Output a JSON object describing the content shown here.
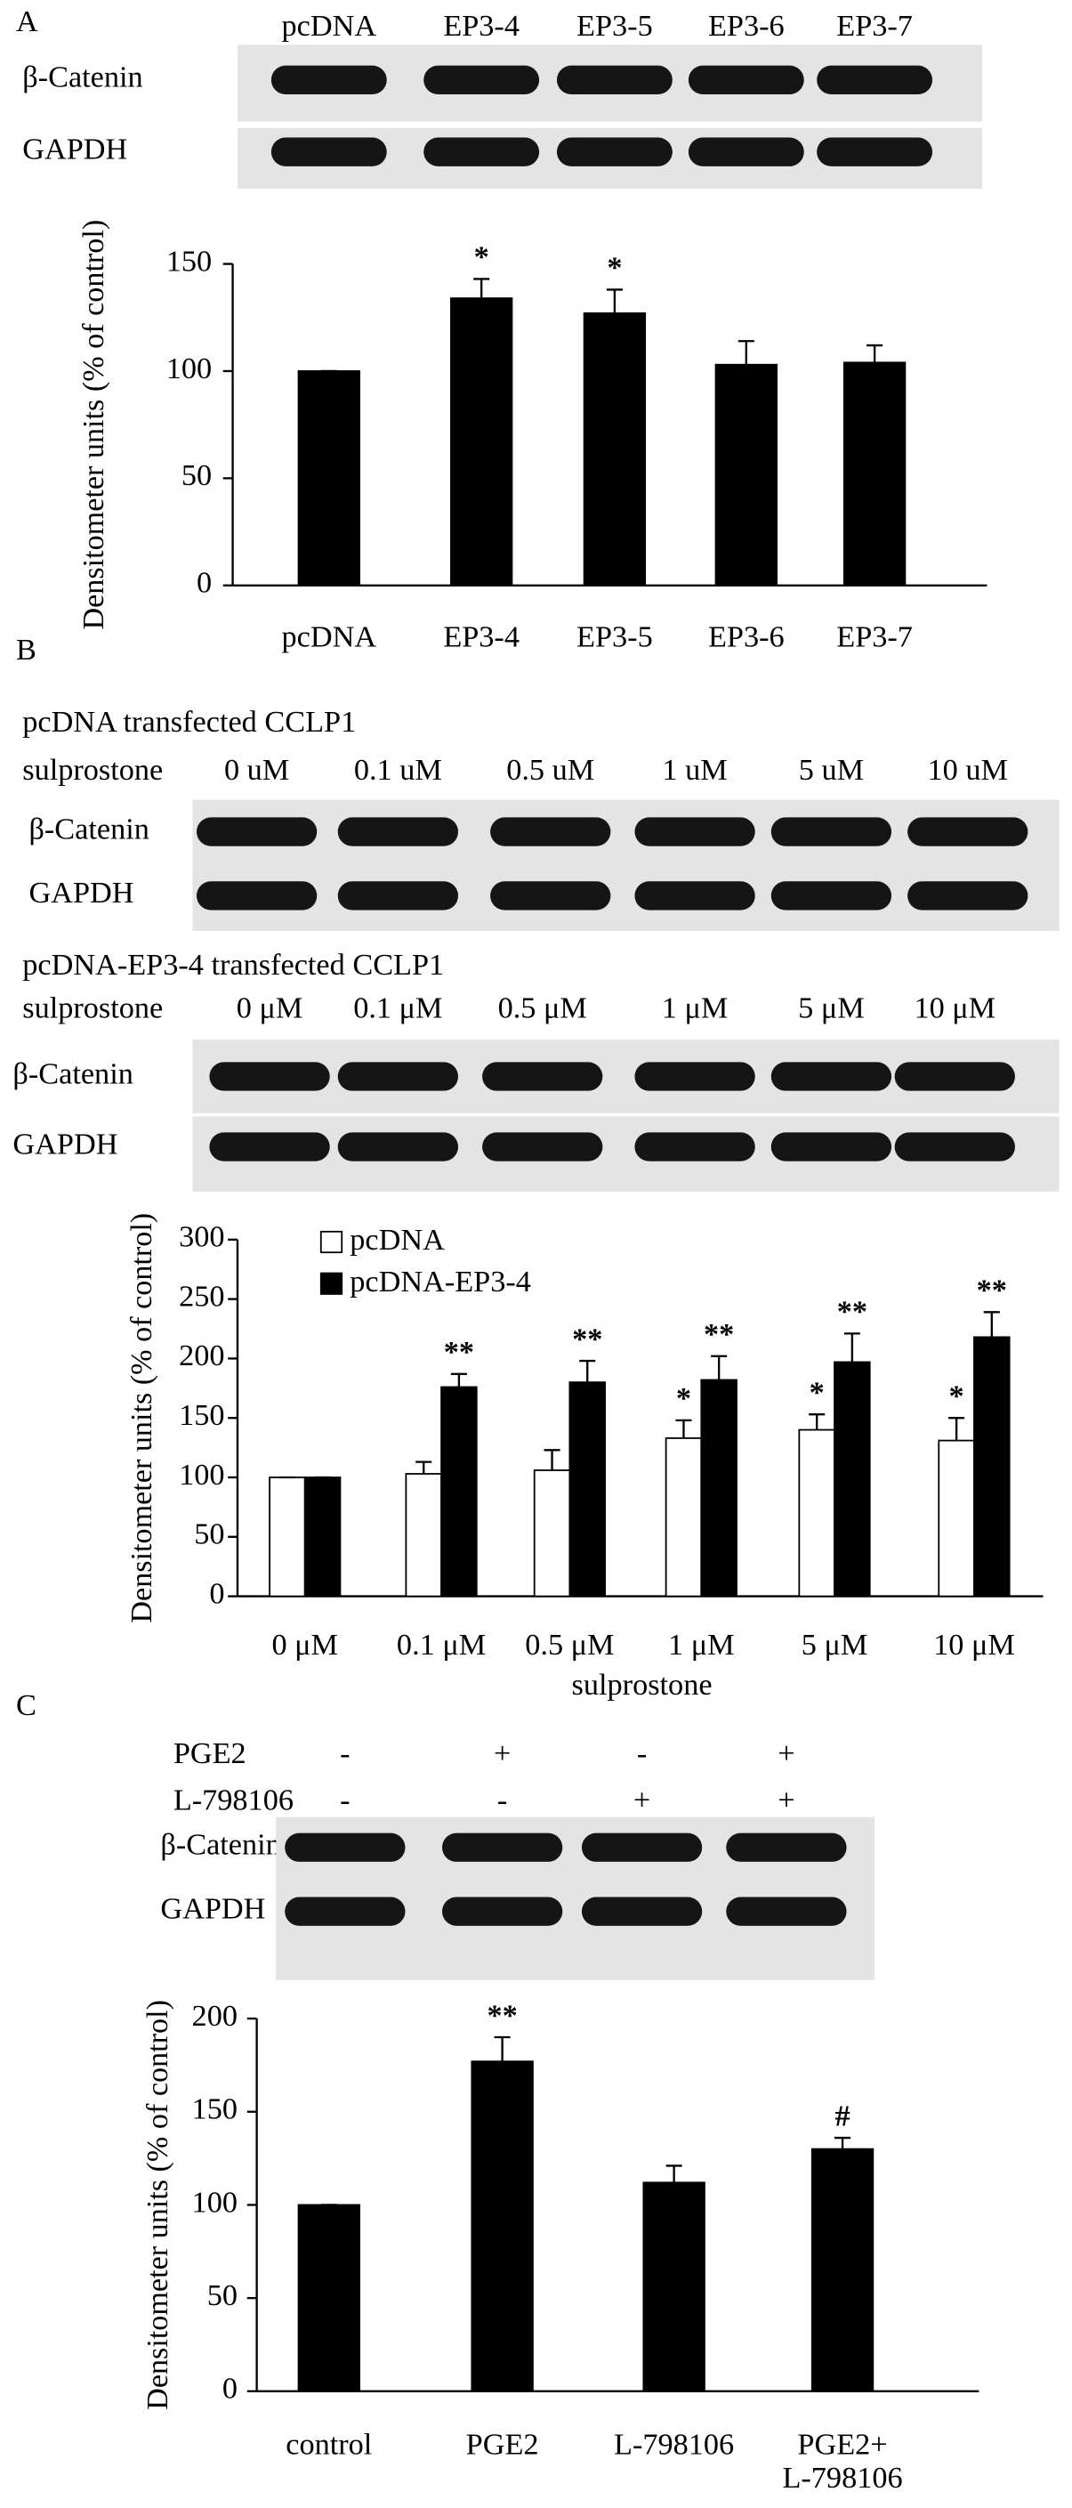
{
  "chart_data": [
    {
      "type": "bar",
      "ylabel": "Densitometer units (% of control)",
      "categories": [
        "pcDNA",
        "EP3-4",
        "EP3-5",
        "EP3-6",
        "EP3-7"
      ],
      "values": [
        100,
        134,
        127,
        103,
        104
      ],
      "errors": [
        0,
        9,
        11,
        11,
        8
      ],
      "annotations": [
        null,
        "*",
        "*",
        null,
        null
      ],
      "color": "#000000",
      "ylim": [
        0,
        150
      ],
      "yticks": [
        0,
        50,
        100,
        150
      ]
    },
    {
      "type": "bar",
      "ylabel": "Densitometer units (% of control)",
      "xlabel": "sulprostone",
      "categories": [
        "0 μM",
        "0.1 μM",
        "0.5 μM",
        "1 μM",
        "5 μM",
        "10 μM"
      ],
      "series": [
        {
          "name": "pcDNA",
          "color": "#ffffff",
          "values": [
            100,
            103,
            106,
            133,
            140,
            131
          ],
          "errors": [
            0,
            10,
            17,
            15,
            13,
            19
          ],
          "annotations": [
            null,
            null,
            null,
            "*",
            "*",
            "*"
          ]
        },
        {
          "name": "pcDNA-EP3-4",
          "color": "#000000",
          "values": [
            100,
            176,
            180,
            182,
            197,
            218
          ],
          "errors": [
            0,
            11,
            18,
            20,
            24,
            21
          ],
          "annotations": [
            null,
            "**",
            "**",
            "**",
            "**",
            "**"
          ]
        }
      ],
      "ylim": [
        0,
        300
      ],
      "yticks": [
        0,
        50,
        100,
        150,
        200,
        250,
        300
      ],
      "legend": "top-left"
    },
    {
      "type": "bar",
      "ylabel": "Densitometer units (% of control)",
      "categories": [
        "control",
        "PGE2",
        "L-798106",
        "PGE2+ L-798106"
      ],
      "values": [
        100,
        177,
        112,
        130
      ],
      "errors": [
        0,
        13,
        9,
        6
      ],
      "annotations": [
        null,
        "**",
        null,
        "#"
      ],
      "color": "#000000",
      "ylim": [
        0,
        200
      ],
      "yticks": [
        0,
        50,
        100,
        150,
        200
      ]
    }
  ],
  "blots": [
    {
      "label": "A",
      "lanes": [
        "pcDNA",
        "EP3-4",
        "EP3-5",
        "EP3-6",
        "EP3-7"
      ],
      "rows": [
        "β-Catenin",
        "GAPDH"
      ]
    },
    {
      "label": "B",
      "title": "pcDNA transfected CCLP1",
      "treatment": "sulprostone",
      "lanes": [
        "0 uM",
        "0.1 uM",
        "0.5 uM",
        "1 uM",
        "5 uM",
        "10 uM"
      ],
      "rows": [
        "β-Catenin",
        "GAPDH"
      ]
    },
    {
      "title": "pcDNA-EP3-4 transfected CCLP1",
      "treatment": "sulprostone",
      "lanes": [
        "0 μM",
        "0.1 μM",
        "0.5 μM",
        "1 μM",
        "5 μM",
        "10 μM"
      ],
      "rows": [
        "β-Catenin",
        "GAPDH"
      ]
    },
    {
      "label": "C",
      "conditions": [
        {
          "name": "PGE2",
          "signs": [
            "-",
            "+",
            "-",
            "+"
          ]
        },
        {
          "name": "L-798106",
          "signs": [
            "-",
            "-",
            "+",
            "+"
          ]
        }
      ],
      "rows": [
        "β-Catenin",
        "GAPDH"
      ]
    }
  ]
}
